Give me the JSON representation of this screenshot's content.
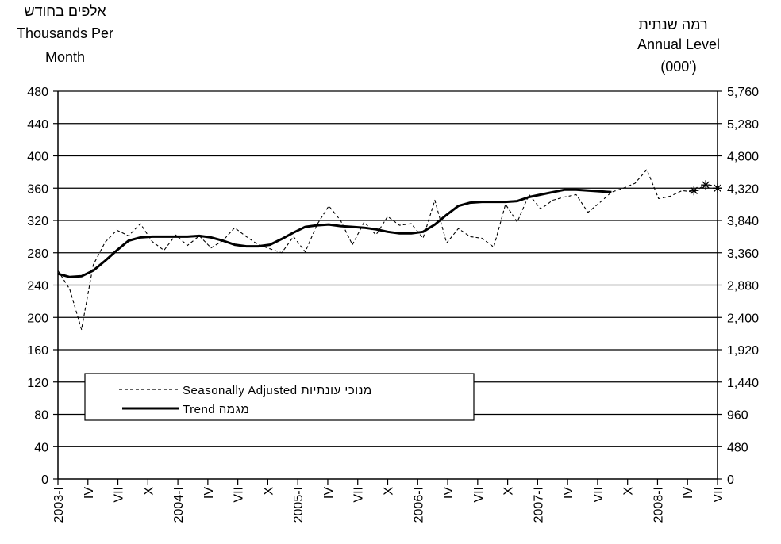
{
  "chart_data": {
    "type": "line",
    "left_axis_title": [
      "אלפים בחודש",
      "Thousands Per",
      "Month"
    ],
    "right_axis_title": [
      "רמה שנתית",
      "Annual Level",
      "(000')"
    ],
    "left_ticks": [
      "0",
      "40",
      "80",
      "120",
      "160",
      "200",
      "240",
      "280",
      "320",
      "360",
      "400",
      "440",
      "480"
    ],
    "right_ticks": [
      "0",
      "480",
      "960",
      "1,440",
      "1,920",
      "2,400",
      "2,880",
      "3,360",
      "3,840",
      "4,320",
      "4,800",
      "5,280",
      "5,760"
    ],
    "ylim": [
      0,
      480
    ],
    "right_ylim": [
      0,
      5760
    ],
    "grid": true,
    "x_labels": [
      "2003-I",
      "IV",
      "VII",
      "X",
      "2004-I",
      "IV",
      "VII",
      "X",
      "2005-I",
      "IV",
      "VII",
      "X",
      "2006-I",
      "IV",
      "VII",
      "X",
      "2007-I",
      "IV",
      "VII",
      "X",
      "2008-I",
      "IV",
      "VII"
    ],
    "series": [
      {
        "name": "Seasonally Adjusted מנוכי עונתיות",
        "style": "dashed",
        "color": "#000000",
        "values": [
          258,
          235,
          185,
          265,
          293,
          308,
          301,
          316,
          294,
          283,
          302,
          289,
          301,
          286,
          295,
          311,
          300,
          290,
          285,
          280,
          300,
          281,
          315,
          338,
          320,
          290,
          318,
          302,
          325,
          314,
          316,
          298,
          345,
          292,
          310,
          300,
          298,
          287,
          340,
          318,
          352,
          334,
          345,
          349,
          352,
          330,
          342,
          355,
          360,
          366,
          383,
          347,
          350,
          357,
          355,
          365,
          362
        ]
      },
      {
        "name": "Trend מגמה",
        "style": "solid",
        "color": "#000000",
        "values": [
          254,
          250,
          251,
          258,
          270,
          283,
          295,
          299,
          300,
          300,
          300,
          300,
          301,
          299,
          295,
          290,
          288,
          288,
          290,
          297,
          305,
          312,
          314,
          315,
          313,
          312,
          311,
          309,
          306,
          304,
          304,
          306,
          315,
          327,
          338,
          342,
          343,
          343,
          343,
          344,
          349,
          352,
          355,
          358,
          358,
          357,
          356,
          355
        ]
      }
    ],
    "star_markers": [
      {
        "x_index": 54,
        "value": 357
      },
      {
        "x_index": 55,
        "value": 364
      },
      {
        "x_index": 56,
        "value": 360
      }
    ]
  }
}
